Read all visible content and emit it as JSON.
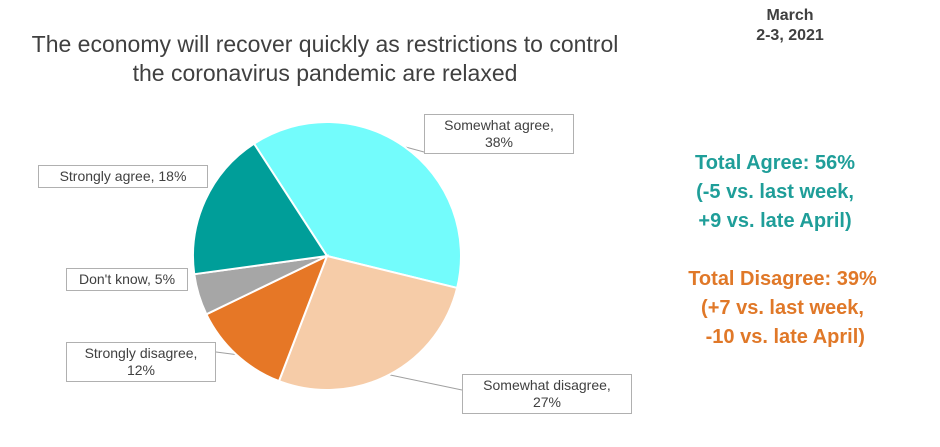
{
  "chart_data": {
    "type": "pie",
    "title_lines": [
      "The economy will recover quickly as restrictions to control",
      "the coronavirus pandemic are relaxed"
    ],
    "date_lines": [
      "March",
      "2-3, 2021"
    ],
    "slices": [
      {
        "name": "Somewhat agree",
        "value": 38,
        "color": "#73FCFC",
        "label_lines": [
          "Somewhat agree,",
          "38%"
        ]
      },
      {
        "name": "Somewhat disagree",
        "value": 27,
        "color": "#F6CCA8",
        "label_lines": [
          "Somewhat disagree,",
          "27%"
        ]
      },
      {
        "name": "Strongly disagree",
        "value": 12,
        "color": "#E67726",
        "label_lines": [
          "Strongly disagree,",
          "12%"
        ]
      },
      {
        "name": "Don't know",
        "value": 5,
        "color": "#A6A6A6",
        "label_lines": [
          "Don't know, 5%"
        ]
      },
      {
        "name": "Strongly agree",
        "value": 18,
        "color": "#009E99",
        "label_lines": [
          "Strongly agree, 18%"
        ]
      }
    ],
    "legend": "none"
  },
  "summary": {
    "agree": {
      "color": "#1F9E99",
      "lines": [
        "Total Agree: 56%",
        "(-5 vs. last week,",
        "+9 vs. late April)"
      ]
    },
    "disagree": {
      "color": "#E07828",
      "lines": [
        "Total Disagree: 39%",
        "(+7 vs. last week,",
        " -10 vs. late April)"
      ]
    }
  }
}
